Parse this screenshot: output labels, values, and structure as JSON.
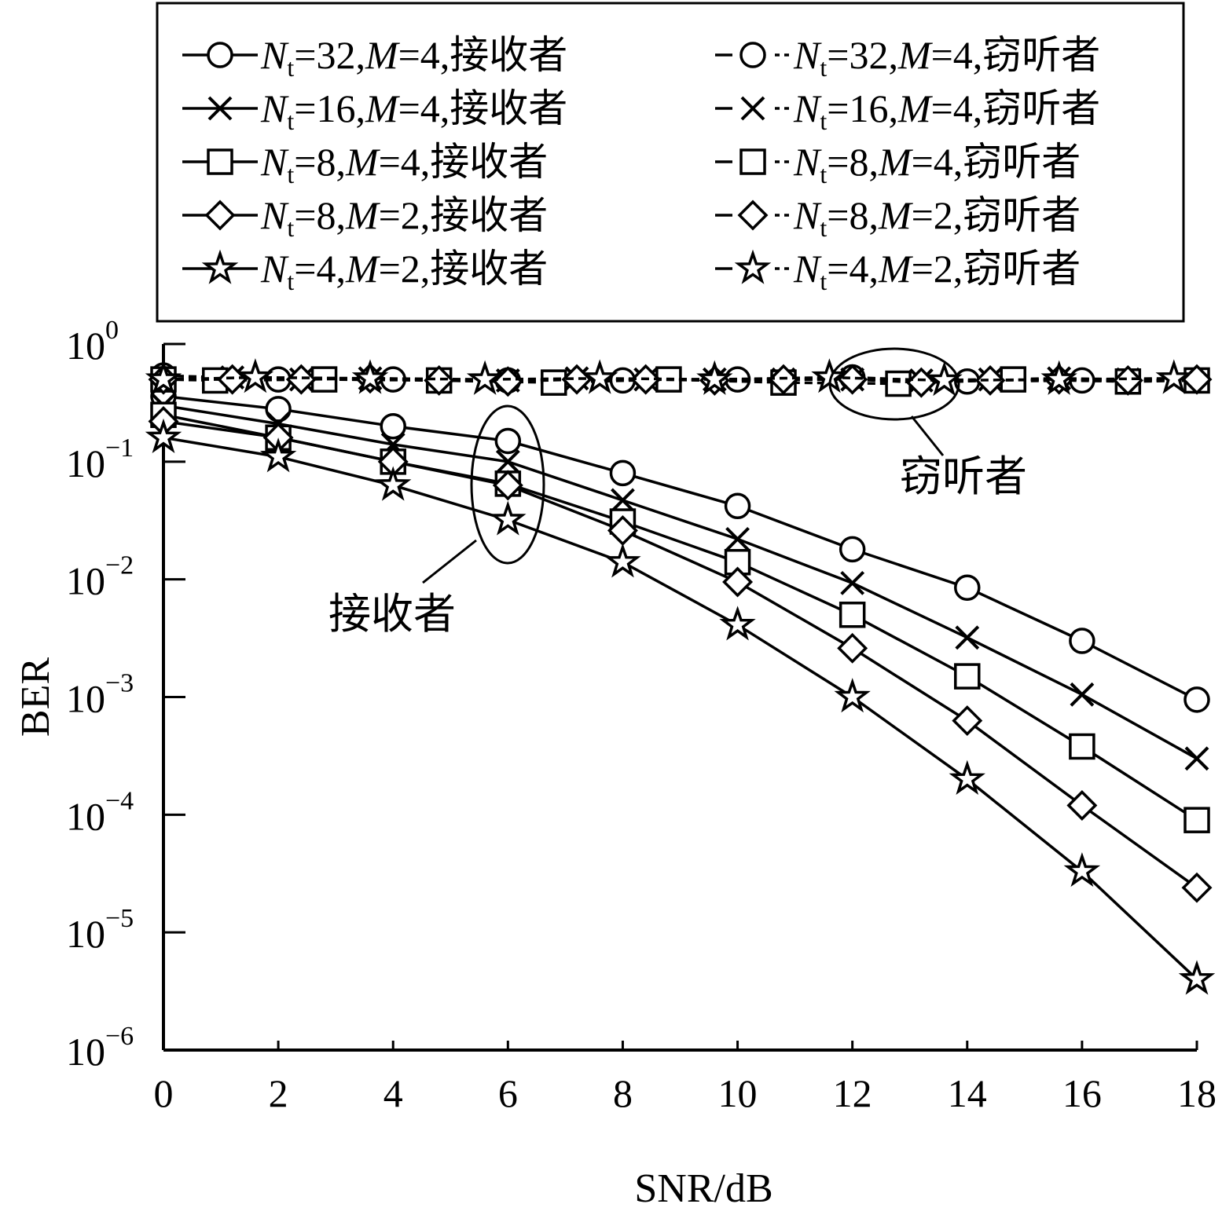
{
  "chart_data": {
    "type": "line",
    "xlabel": "SNR/dB",
    "ylabel": "BER",
    "xlim": [
      0,
      18
    ],
    "ylim": [
      1e-06,
      1
    ],
    "yscale": "log",
    "grid": false,
    "legend_position": "top",
    "x_ticks": [
      "0",
      "2",
      "4",
      "6",
      "8",
      "10",
      "12",
      "14",
      "16",
      "18"
    ],
    "y_ticks": [
      {
        "base": "10",
        "exp": "0"
      },
      {
        "base": "10",
        "exp": "−1"
      },
      {
        "base": "10",
        "exp": "−2"
      },
      {
        "base": "10",
        "exp": "−3"
      },
      {
        "base": "10",
        "exp": "−4"
      },
      {
        "base": "10",
        "exp": "−5"
      },
      {
        "base": "10",
        "exp": "−6"
      }
    ],
    "annotations": [
      {
        "text": "窃听者"
      },
      {
        "text": "接收者"
      }
    ],
    "series": [
      {
        "nt": "32",
        "m": "4",
        "role": "接收者",
        "marker": "circle",
        "dashed": false,
        "x": [
          0,
          2,
          4,
          6,
          8,
          10,
          12,
          14,
          16,
          18
        ],
        "y": [
          0.36,
          0.28,
          0.2,
          0.15,
          0.08,
          0.042,
          0.018,
          0.0085,
          0.003,
          0.00095
        ]
      },
      {
        "nt": "16",
        "m": "4",
        "role": "接收者",
        "marker": "cross",
        "dashed": false,
        "x": [
          0,
          2,
          4,
          6,
          8,
          10,
          12,
          14,
          16,
          18
        ],
        "y": [
          0.3,
          0.21,
          0.14,
          0.1,
          0.047,
          0.022,
          0.0093,
          0.0032,
          0.00105,
          0.0003
        ]
      },
      {
        "nt": "8",
        "m": "4",
        "role": "接收者",
        "marker": "square",
        "dashed": false,
        "x": [
          0,
          2,
          4,
          6,
          8,
          10,
          12,
          14,
          16,
          18
        ],
        "y": [
          0.25,
          0.16,
          0.1,
          0.065,
          0.031,
          0.014,
          0.005,
          0.0015,
          0.00038,
          9e-05
        ]
      },
      {
        "nt": "8",
        "m": "2",
        "role": "接收者",
        "marker": "diamond",
        "dashed": false,
        "x": [
          0,
          2,
          4,
          6,
          8,
          10,
          12,
          14,
          16,
          18
        ],
        "y": [
          0.22,
          0.16,
          0.1,
          0.063,
          0.026,
          0.0095,
          0.0026,
          0.00063,
          0.00012,
          2.4e-05
        ]
      },
      {
        "nt": "4",
        "m": "2",
        "role": "接收者",
        "marker": "star",
        "dashed": false,
        "x": [
          0,
          2,
          4,
          6,
          8,
          10,
          12,
          14,
          16,
          18
        ],
        "y": [
          0.16,
          0.11,
          0.063,
          0.032,
          0.014,
          0.0041,
          0.001,
          0.0002,
          3.3e-05,
          4e-06
        ]
      },
      {
        "nt": "32",
        "m": "4",
        "role": "窃听者",
        "marker": "circle",
        "dashed": true,
        "x": [
          0,
          2,
          4,
          6,
          8,
          10,
          12,
          14,
          16,
          18
        ],
        "y": [
          0.54,
          0.5,
          0.5,
          0.49,
          0.49,
          0.5,
          0.52,
          0.48,
          0.49,
          0.49
        ]
      },
      {
        "nt": "16",
        "m": "4",
        "role": "窃听者",
        "marker": "cross",
        "dashed": true,
        "x": [
          0,
          1.2,
          2.4,
          3.6,
          4.8,
          6,
          7.2,
          8.4,
          9.6,
          10.8,
          12,
          13.2,
          14.4,
          15.6,
          16.8,
          18
        ],
        "y": [
          0.5,
          0.52,
          0.5,
          0.51,
          0.5,
          0.49,
          0.51,
          0.5,
          0.5,
          0.5,
          0.5,
          0.49,
          0.5,
          0.51,
          0.5,
          0.49
        ]
      },
      {
        "nt": "8",
        "m": "4",
        "role": "窃听者",
        "marker": "square",
        "dashed": true,
        "x": [
          0,
          0.9,
          2.8,
          4.8,
          6.8,
          8.8,
          10.8,
          12.8,
          14.8,
          16.8,
          18
        ],
        "y": [
          0.5,
          0.49,
          0.5,
          0.49,
          0.47,
          0.5,
          0.47,
          0.46,
          0.5,
          0.48,
          0.49
        ]
      },
      {
        "nt": "8",
        "m": "2",
        "role": "窃听者",
        "marker": "diamond",
        "dashed": true,
        "x": [
          0,
          1.2,
          2.4,
          3.6,
          4.8,
          6,
          7.2,
          8.4,
          9.6,
          10.8,
          12,
          13.2,
          14.4,
          15.6,
          16.8,
          18
        ],
        "y": [
          0.5,
          0.5,
          0.5,
          0.51,
          0.49,
          0.48,
          0.5,
          0.5,
          0.49,
          0.5,
          0.5,
          0.47,
          0.49,
          0.5,
          0.49,
          0.5
        ]
      },
      {
        "nt": "4",
        "m": "2",
        "role": "窃听者",
        "marker": "star",
        "dashed": true,
        "x": [
          0,
          1.6,
          3.6,
          5.6,
          7.6,
          9.6,
          11.6,
          13.6,
          15.6,
          17.6
        ],
        "y": [
          0.5,
          0.52,
          0.51,
          0.5,
          0.51,
          0.5,
          0.52,
          0.49,
          0.5,
          0.51
        ]
      }
    ]
  }
}
